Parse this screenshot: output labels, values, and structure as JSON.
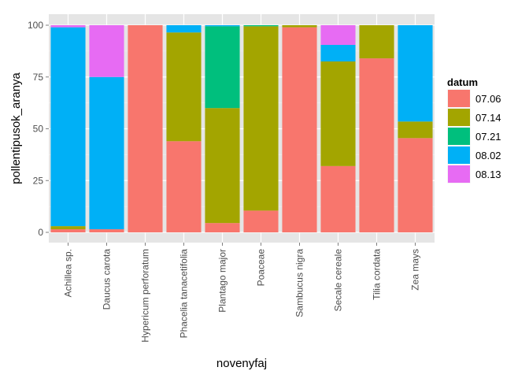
{
  "chart_data": {
    "type": "bar",
    "stacked": true,
    "xlabel": "novenyfaj",
    "ylabel": "pollentipusok_aranya",
    "ylim": [
      0,
      100
    ],
    "yticks": [
      0,
      25,
      50,
      75,
      100
    ],
    "grid": true,
    "legend": {
      "title": "datum",
      "position": "right"
    },
    "categories": [
      "Achillea sp.",
      "Daucus carota",
      "Hypericum perforatum",
      "Phacelia tanacetifolia",
      "Plantago major",
      "Poaceae",
      "Sambucus nigra",
      "Secale cereale",
      "Tilia cordata",
      "Zea mays"
    ],
    "series": [
      {
        "name": "07.06",
        "color": "#F8766D",
        "values": [
          1.5,
          1.5,
          100,
          44,
          4.5,
          10.5,
          99,
          32,
          84,
          45.5
        ]
      },
      {
        "name": "07.14",
        "color": "#A3A500",
        "values": [
          1.5,
          0,
          0,
          52.5,
          55.5,
          89,
          1,
          50.5,
          16,
          8
        ]
      },
      {
        "name": "07.21",
        "color": "#00BF7D",
        "values": [
          0,
          0,
          0,
          0,
          39.5,
          0.5,
          0,
          0,
          0,
          0
        ]
      },
      {
        "name": "08.02",
        "color": "#00B0F6",
        "values": [
          96,
          73.5,
          0,
          3.5,
          0.5,
          0,
          0,
          8,
          0,
          46.5
        ]
      },
      {
        "name": "08.13",
        "color": "#E76BF3",
        "values": [
          1,
          25,
          0,
          0,
          0,
          0,
          0,
          9.5,
          0,
          0
        ]
      }
    ]
  }
}
